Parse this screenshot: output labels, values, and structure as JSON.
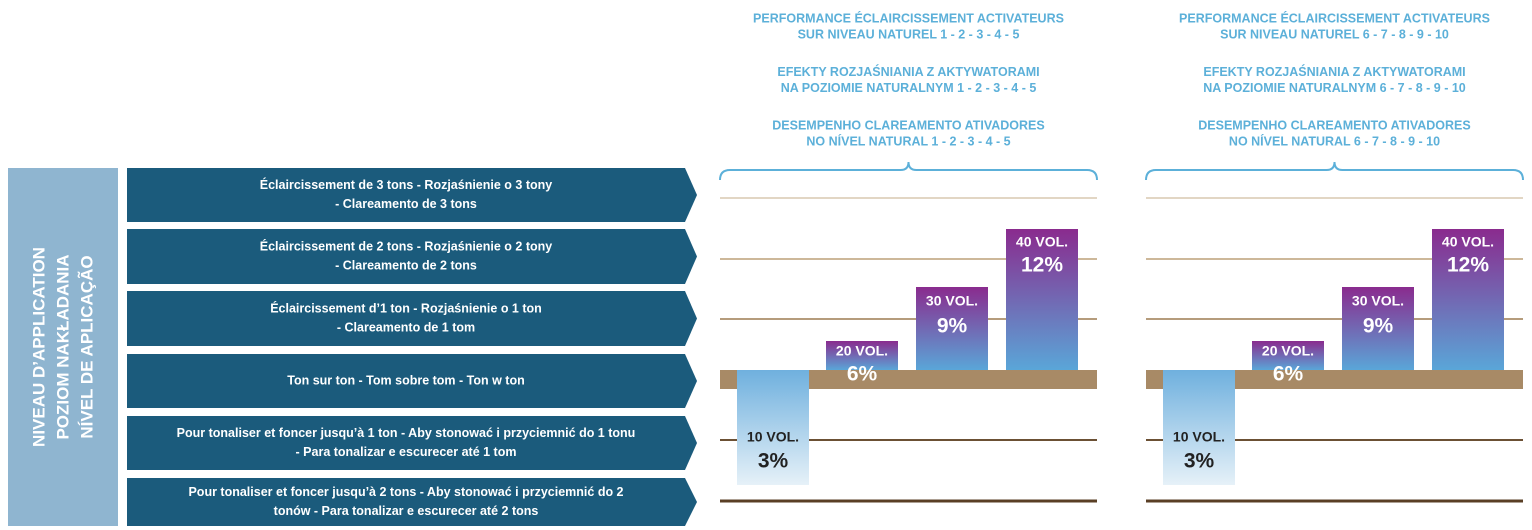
{
  "side_label": [
    "NIVEAU D’APPLICATION",
    "POZIOM NAKŁADANIA",
    "NÍVEL DE APLICAÇÃO"
  ],
  "rows": [
    [
      "Éclaircissement de 3 tons - Rozjaśnienie o 3 tony",
      "- Clareamento de 3 tons"
    ],
    [
      "Éclaircissement de 2 tons - Rozjaśnienie o 2 tony",
      "- Clareamento de 2 tons"
    ],
    [
      "Éclaircissement d’1 ton - Rozjaśnienie o 1 ton",
      "- Clareamento de 1 tom"
    ],
    [
      "Ton sur ton - Tom sobre tom - Ton w ton"
    ],
    [
      "Pour tonaliser et foncer jusqu’à 1 ton - Aby stonować i przyciemnić do 1 tonu",
      "- Para tonalizar e escurecer até 1 tom"
    ],
    [
      "Pour tonaliser et foncer jusqu’à 2 tons  - Aby stonować i przyciemnić do 2",
      "tonów - Para tonalizar e escurecer até 2 tons"
    ]
  ],
  "panels": [
    {
      "headers": [
        [
          "PERFORMANCE ÉCLAIRCISSEMENT ACTIVATEURS",
          "SUR NIVEAU NATUREL 1 - 2 - 3 - 4 - 5"
        ],
        [
          "EFEKTY ROZJAŚNIANIA Z AKTYWATORAMI",
          "NA POZIOMIE NATURALNYM 1 - 2 - 3 - 4 - 5"
        ],
        [
          "DESEMPENHO CLAREAMENTO ATIVADORES",
          "NO NÍVEL NATURAL 1 - 2 - 3 - 4 - 5"
        ]
      ],
      "bars": [
        {
          "vol": "10 VOL.",
          "pct": "3%"
        },
        {
          "vol": "20 VOL.",
          "pct": "6%"
        },
        {
          "vol": "30 VOL.",
          "pct": "9%"
        },
        {
          "vol": "40 VOL.",
          "pct": "12%"
        }
      ]
    },
    {
      "headers": [
        [
          "PERFORMANCE ÉCLAIRCISSEMENT ACTIVATEURS",
          "SUR NIVEAU NATUREL 6 - 7 - 8 - 9 - 10"
        ],
        [
          "EFEKTY ROZJAŚNIANIA Z AKTYWATORAMI",
          "NA POZIOMIE NATURALNYM 6 - 7 - 8 - 9 - 10"
        ],
        [
          "DESEMPENHO CLAREAMENTO ATIVADORES",
          "NO NÍVEL NATURAL 6 - 7 - 8 - 9 - 10"
        ]
      ],
      "bars": [
        {
          "vol": "10 VOL.",
          "pct": "3%"
        },
        {
          "vol": "20 VOL.",
          "pct": "6%"
        },
        {
          "vol": "30 VOL.",
          "pct": "9%"
        },
        {
          "vol": "40 VOL.",
          "pct": "12%"
        }
      ]
    }
  ]
}
